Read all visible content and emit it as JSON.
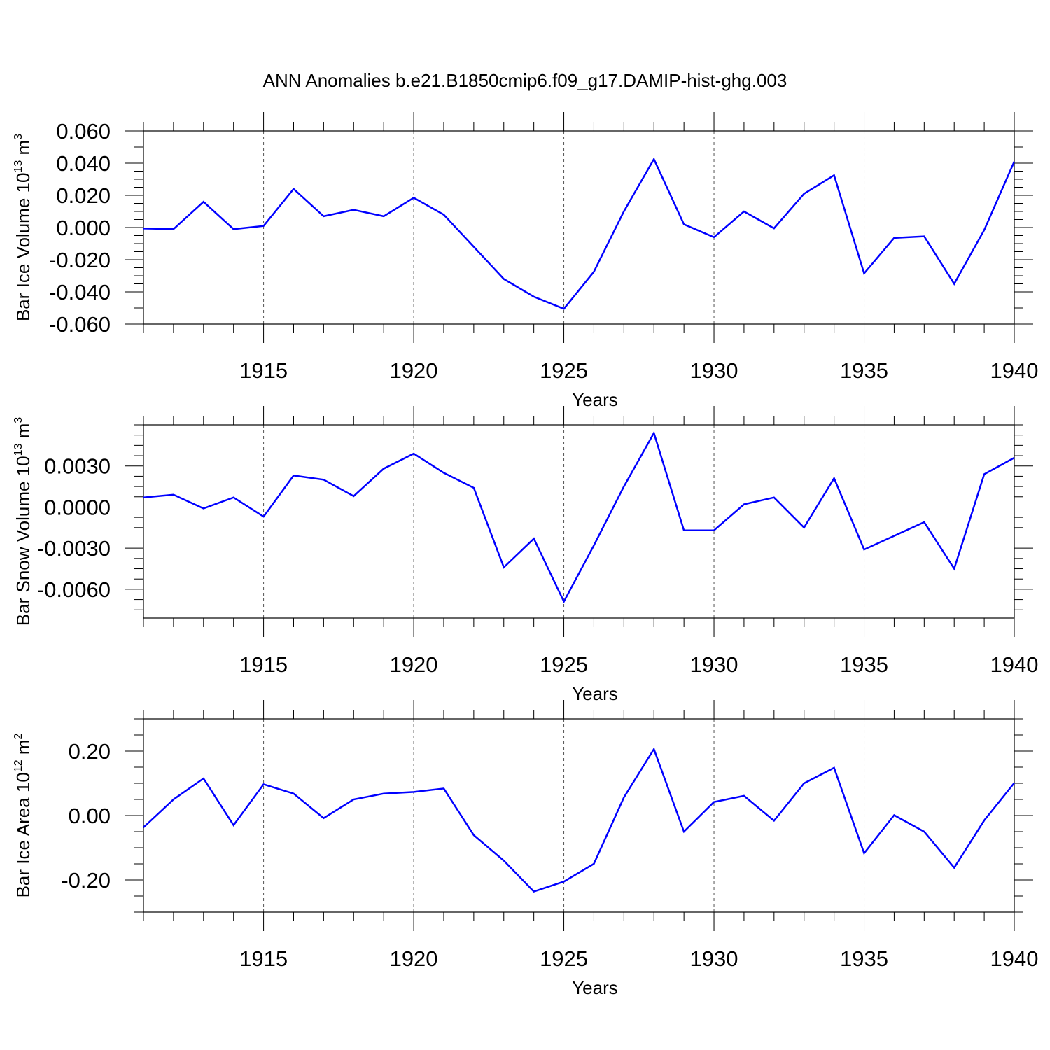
{
  "title": "ANN Anomalies b.e21.B1850cmip6.f09_g17.DAMIP-hist-ghg.003",
  "line_color": "#0000ff",
  "chart_data": [
    {
      "type": "line",
      "xlabel": "Years",
      "ylabel": "Bar Ice Volume 10",
      "ylabel_sup1": "13",
      "ylabel_mid": " m",
      "ylabel_sup2": "3",
      "xlim": [
        1911,
        1940
      ],
      "ylim": [
        -0.06,
        0.06
      ],
      "xticks": [
        1915,
        1920,
        1925,
        1930,
        1935,
        1940
      ],
      "yticks": [
        -0.06,
        -0.04,
        -0.02,
        0.0,
        0.02,
        0.04,
        0.06
      ],
      "ytick_labels": [
        "-0.060",
        "-0.040",
        "-0.020",
        "0.000",
        "0.020",
        "0.040",
        "0.060"
      ],
      "grid": "vertical dashed at major x ticks",
      "x": [
        1911,
        1912,
        1913,
        1914,
        1915,
        1916,
        1917,
        1918,
        1919,
        1920,
        1921,
        1922,
        1923,
        1924,
        1925,
        1926,
        1927,
        1928,
        1929,
        1930,
        1931,
        1932,
        1933,
        1934,
        1935,
        1936,
        1937,
        1938,
        1939,
        1940
      ],
      "series": [
        {
          "values": [
            -0.0006,
            -0.001,
            0.016,
            -0.001,
            0.001,
            0.024,
            0.007,
            0.011,
            0.007,
            0.0185,
            0.008,
            -0.012,
            -0.032,
            -0.043,
            -0.0505,
            -0.0275,
            0.01,
            0.0425,
            0.002,
            -0.006,
            0.01,
            -0.0005,
            0.021,
            0.0325,
            -0.0285,
            -0.0065,
            -0.0055,
            -0.035,
            -0.0015,
            0.041
          ]
        }
      ]
    },
    {
      "type": "line",
      "xlabel": "Years",
      "ylabel": "Bar Snow Volume 10",
      "ylabel_sup1": "13",
      "ylabel_mid": " m",
      "ylabel_sup2": "3",
      "xlim": [
        1911,
        1940
      ],
      "ylim": [
        -0.0081,
        0.006
      ],
      "xticks": [
        1915,
        1920,
        1925,
        1930,
        1935,
        1940
      ],
      "yticks": [
        -0.006,
        -0.003,
        0.0,
        0.003
      ],
      "ytick_labels": [
        "-0.0060",
        "-0.0030",
        "0.0000",
        "0.0030"
      ],
      "grid": "vertical dashed at major x ticks",
      "x": [
        1911,
        1912,
        1913,
        1914,
        1915,
        1916,
        1917,
        1918,
        1919,
        1920,
        1921,
        1922,
        1923,
        1924,
        1925,
        1926,
        1927,
        1928,
        1929,
        1930,
        1931,
        1932,
        1933,
        1934,
        1935,
        1936,
        1937,
        1938,
        1939,
        1940
      ],
      "series": [
        {
          "values": [
            0.0007,
            0.0009,
            -0.0001,
            0.0007,
            -0.0007,
            0.0023,
            0.002,
            0.0008,
            0.0028,
            0.0039,
            0.0025,
            0.0014,
            -0.0044,
            -0.0023,
            -0.0069,
            -0.0028,
            0.0015,
            0.0054,
            -0.0017,
            -0.0017,
            0.0002,
            0.0007,
            -0.0015,
            0.0021,
            -0.0031,
            -0.0021,
            -0.0011,
            -0.0045,
            0.0024,
            0.0036
          ]
        }
      ]
    },
    {
      "type": "line",
      "xlabel": "Years",
      "ylabel": "Bar Ice Area 10",
      "ylabel_sup1": "12",
      "ylabel_mid": " m",
      "ylabel_sup2": "2",
      "xlim": [
        1911,
        1940
      ],
      "ylim": [
        -0.3,
        0.3
      ],
      "xticks": [
        1915,
        1920,
        1925,
        1930,
        1935,
        1940
      ],
      "yticks": [
        -0.2,
        0.0,
        0.2
      ],
      "ytick_labels": [
        "-0.20",
        "0.00",
        "0.20"
      ],
      "grid": "vertical dashed at major x ticks",
      "x": [
        1911,
        1912,
        1913,
        1914,
        1915,
        1916,
        1917,
        1918,
        1919,
        1920,
        1921,
        1922,
        1923,
        1924,
        1925,
        1926,
        1927,
        1928,
        1929,
        1930,
        1931,
        1932,
        1933,
        1934,
        1935,
        1936,
        1937,
        1938,
        1939,
        1940
      ],
      "series": [
        {
          "values": [
            -0.037,
            0.05,
            0.115,
            -0.03,
            0.097,
            0.068,
            -0.008,
            0.05,
            0.068,
            0.073,
            0.084,
            -0.061,
            -0.14,
            -0.236,
            -0.205,
            -0.15,
            0.056,
            0.206,
            -0.05,
            0.042,
            0.061,
            -0.016,
            0.1,
            0.148,
            -0.117,
            0.001,
            -0.05,
            -0.162,
            -0.015,
            0.101
          ]
        }
      ]
    }
  ]
}
